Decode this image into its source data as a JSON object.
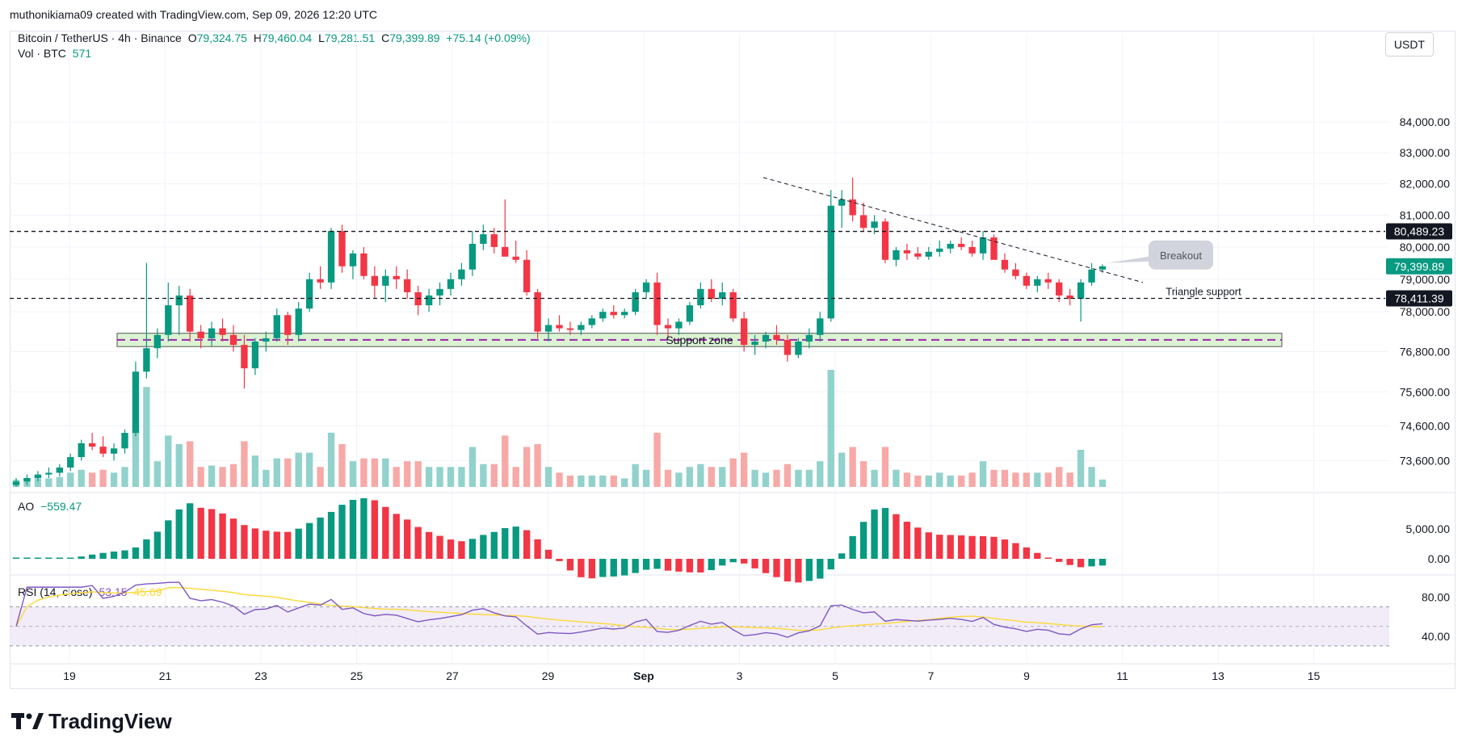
{
  "header": {
    "text": "muthonikiama09 created with TradingView.com, Sep 09, 2026 12:20 UTC"
  },
  "legend": {
    "symbol": "Bitcoin / TetherUS · 4h · Binance",
    "o_label": "O",
    "o": "79,324.75",
    "h_label": "H",
    "h": "79,460.04",
    "l_label": "L",
    "l": "79,281.51",
    "c_label": "C",
    "c": "79,399.89",
    "change": "+75.14 (+0.09%)",
    "vol_label": "Vol · BTC",
    "vol": "571",
    "ao_label": "AO",
    "ao": "−559.47",
    "rsi_label": "RSI (14, close)",
    "rsi": "53.15",
    "rsi_ma": "45.69"
  },
  "currency_button": "USDT",
  "logo_text": "TradingView",
  "colors": {
    "up": "#089981",
    "down": "#f23645",
    "up_vol": "#92d2cc",
    "down_vol": "#f7a9a7",
    "ao_up": "#089981",
    "ao_down": "#f23645",
    "rsi_line": "#7e57c2",
    "rsi_ma": "#fdd835",
    "zone_fill": "#dbf3d2",
    "zone_line": "#9c27b0"
  },
  "chart_data": {
    "type": "candlestick",
    "price_axis": {
      "scale": "log",
      "ticks": [
        "84,000.00",
        "83,000.00",
        "82,000.00",
        "81,000.00",
        "80,000.00",
        "79,000.00",
        "78,000.00",
        "76,800.00",
        "75,600.00",
        "74,600.00",
        "73,600.00"
      ],
      "range": [
        72800,
        85500
      ]
    },
    "ao_axis": {
      "ticks": [
        "5,000.00",
        "0.00"
      ]
    },
    "rsi_axis": {
      "ticks": [
        "80.00",
        "40.00"
      ],
      "bands": [
        70,
        30
      ]
    },
    "x_axis_labels": [
      "19",
      "21",
      "23",
      "25",
      "27",
      "29",
      "Sep",
      "3",
      "5",
      "7",
      "9",
      "11",
      "13",
      "15"
    ],
    "price_labels": [
      {
        "text": "80,489.23",
        "value": 80489.23,
        "style": "dark"
      },
      {
        "text": "79,399.89",
        "value": 79399.89,
        "style": "green"
      },
      {
        "text": "78,411.39",
        "value": 78411.39,
        "style": "dark"
      }
    ],
    "horizontal_lines": [
      80489.23,
      78411.39
    ],
    "support_zone": {
      "label": "Support zone",
      "low": 76950,
      "high": 77350,
      "mid": 77150
    },
    "annotations": {
      "breakout": "Breakout",
      "triangle": "Triangle support"
    },
    "trendline": {
      "from": {
        "day": "Sep 2",
        "price": 82200
      },
      "to": {
        "day": "Sep 10",
        "price": 78900
      }
    },
    "candles_ohlc": [
      [
        72900,
        73100,
        72850,
        73000
      ],
      [
        73000,
        73200,
        72900,
        73100
      ],
      [
        73100,
        73300,
        73000,
        73200
      ],
      [
        73200,
        73400,
        73100,
        73250
      ],
      [
        73250,
        73500,
        73150,
        73400
      ],
      [
        73400,
        73800,
        73300,
        73700
      ],
      [
        73700,
        74200,
        73600,
        74100
      ],
      [
        74100,
        74400,
        73900,
        74000
      ],
      [
        74000,
        74300,
        73700,
        73800
      ],
      [
        73800,
        74100,
        73600,
        73950
      ],
      [
        73950,
        74500,
        73800,
        74400
      ],
      [
        74400,
        76500,
        74300,
        76200
      ],
      [
        76200,
        79500,
        76000,
        76900
      ],
      [
        76900,
        77500,
        76600,
        77300
      ],
      [
        77300,
        78900,
        77100,
        78200
      ],
      [
        78200,
        78800,
        77300,
        78500
      ],
      [
        78500,
        78700,
        77100,
        77400
      ],
      [
        77400,
        77600,
        76900,
        77200
      ],
      [
        77200,
        77700,
        76950,
        77500
      ],
      [
        77500,
        77800,
        77100,
        77300
      ],
      [
        77300,
        77600,
        76800,
        77000
      ],
      [
        77000,
        77300,
        75700,
        76300
      ],
      [
        76300,
        77200,
        76100,
        77100
      ],
      [
        77100,
        77400,
        76800,
        77200
      ],
      [
        77200,
        78100,
        77100,
        77900
      ],
      [
        77900,
        78000,
        77000,
        77300
      ],
      [
        77300,
        78300,
        77100,
        78100
      ],
      [
        78100,
        79200,
        78000,
        79000
      ],
      [
        79000,
        79400,
        78700,
        78900
      ],
      [
        78900,
        80600,
        78700,
        80500
      ],
      [
        80500,
        80700,
        79200,
        79400
      ],
      [
        79400,
        79900,
        79000,
        79800
      ],
      [
        79800,
        80000,
        79000,
        79100
      ],
      [
        79100,
        79400,
        78400,
        78800
      ],
      [
        78800,
        79300,
        78300,
        79100
      ],
      [
        79100,
        79400,
        78700,
        79000
      ],
      [
        79000,
        79300,
        78400,
        78600
      ],
      [
        78600,
        78800,
        77900,
        78200
      ],
      [
        78200,
        78700,
        78000,
        78500
      ],
      [
        78500,
        78900,
        78200,
        78700
      ],
      [
        78700,
        79200,
        78500,
        79000
      ],
      [
        79000,
        79500,
        78800,
        79300
      ],
      [
        79300,
        80500,
        79100,
        80100
      ],
      [
        80100,
        80700,
        79900,
        80400
      ],
      [
        80400,
        80600,
        79800,
        80000
      ],
      [
        80000,
        81500,
        79700,
        79700
      ],
      [
        79700,
        80200,
        79500,
        79600
      ],
      [
        79600,
        79900,
        78500,
        78600
      ],
      [
        78600,
        78700,
        77200,
        77400
      ],
      [
        77400,
        77800,
        77100,
        77600
      ],
      [
        77600,
        77900,
        77400,
        77500
      ],
      [
        77500,
        77700,
        77300,
        77450
      ],
      [
        77450,
        77700,
        77300,
        77600
      ],
      [
        77600,
        77900,
        77500,
        77800
      ],
      [
        77800,
        78100,
        77700,
        78000
      ],
      [
        78000,
        78200,
        77800,
        77900
      ],
      [
        77900,
        78100,
        77800,
        78000
      ],
      [
        78000,
        78700,
        77900,
        78600
      ],
      [
        78600,
        79000,
        78400,
        78900
      ],
      [
        78900,
        79200,
        77300,
        77600
      ],
      [
        77600,
        77800,
        77200,
        77500
      ],
      [
        77500,
        77800,
        77300,
        77700
      ],
      [
        77700,
        78300,
        77600,
        78200
      ],
      [
        78200,
        78900,
        78100,
        78700
      ],
      [
        78700,
        79000,
        78300,
        78400
      ],
      [
        78400,
        78900,
        78200,
        78600
      ],
      [
        78600,
        78700,
        77700,
        77800
      ],
      [
        77800,
        78000,
        76800,
        77000
      ],
      [
        77000,
        77300,
        76700,
        77100
      ],
      [
        77100,
        77400,
        76900,
        77300
      ],
      [
        77300,
        77600,
        77000,
        77150
      ],
      [
        77150,
        77300,
        76500,
        76700
      ],
      [
        76700,
        77200,
        76600,
        77100
      ],
      [
        77100,
        77500,
        76900,
        77300
      ],
      [
        77300,
        78000,
        77100,
        77800
      ],
      [
        77800,
        81800,
        77700,
        81300
      ],
      [
        81300,
        81800,
        80600,
        81500
      ],
      [
        81500,
        82200,
        80800,
        81000
      ],
      [
        81000,
        81400,
        80500,
        80600
      ],
      [
        80600,
        81000,
        80400,
        80800
      ],
      [
        80800,
        80900,
        79500,
        79600
      ],
      [
        79600,
        80000,
        79400,
        79900
      ],
      [
        79900,
        80100,
        79600,
        79800
      ],
      [
        79800,
        80000,
        79600,
        79700
      ],
      [
        79700,
        80000,
        79600,
        79850
      ],
      [
        79850,
        80200,
        79700,
        79950
      ],
      [
        79950,
        80200,
        79800,
        80100
      ],
      [
        80100,
        80300,
        79900,
        80000
      ],
      [
        80000,
        80200,
        79700,
        79800
      ],
      [
        79800,
        80500,
        79600,
        80300
      ],
      [
        80300,
        80400,
        79800,
        79600
      ],
      [
        79600,
        79800,
        79200,
        79300
      ],
      [
        79300,
        79500,
        79000,
        79100
      ],
      [
        79100,
        79200,
        78700,
        78800
      ],
      [
        78800,
        79100,
        78600,
        79000
      ],
      [
        79000,
        79200,
        78700,
        78900
      ],
      [
        78900,
        79000,
        78300,
        78500
      ],
      [
        78500,
        78700,
        78200,
        78400
      ],
      [
        78400,
        79000,
        77700,
        78900
      ],
      [
        78900,
        79500,
        78800,
        79300
      ],
      [
        79300,
        79460,
        79200,
        79400
      ]
    ]
  }
}
